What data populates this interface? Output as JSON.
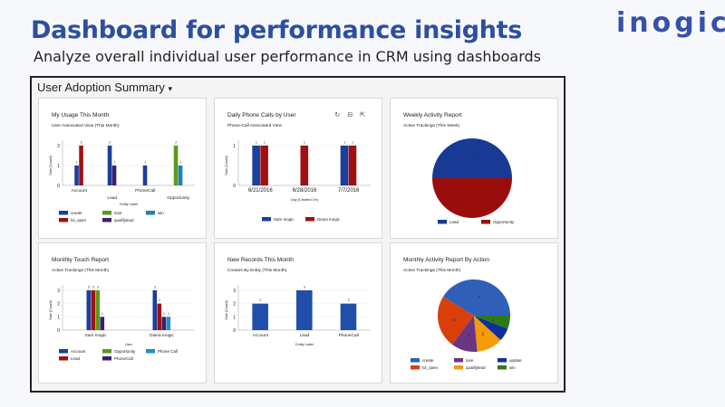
{
  "header": {
    "title": "Dashboard for performance insights",
    "subtitle": "Analyze overall individual user performance in CRM using dashboards",
    "logo": "inogic"
  },
  "dashboard": {
    "name": "User Adoption Summary",
    "chevron": "▾"
  },
  "chart_data": [
    {
      "type": "bar",
      "title": "My Usage This Month",
      "subtitle": "User Associated View (This Month)",
      "xlabel": "Entity Label",
      "ylabel": "Sum (Count)",
      "ylim": [
        0,
        2
      ],
      "yticks": [
        0,
        1,
        2
      ],
      "categories": [
        "Account",
        "Lead",
        "PhoneCall",
        "Opportunity"
      ],
      "series": [
        {
          "name": "create",
          "color": "#1a3f9c",
          "values": [
            1,
            2,
            1,
            null
          ]
        },
        {
          "name": "lol_open",
          "color": "#a01010",
          "values": [
            2,
            null,
            null,
            null
          ]
        },
        {
          "name": "qualifylead",
          "color": "#3b1f6e",
          "values": [
            null,
            1,
            null,
            null
          ]
        },
        {
          "name": "lose",
          "color": "#5a9a1a",
          "values": [
            null,
            null,
            null,
            2
          ]
        },
        {
          "name": "win",
          "color": "#1f7fb8",
          "values": [
            null,
            null,
            null,
            1
          ]
        }
      ],
      "legend": [
        "create",
        "lose",
        "win",
        "lol_open",
        "qualifylead"
      ]
    },
    {
      "type": "bar",
      "title": "Daily Phone Calls by User",
      "subtitle": "Phone-Call Associated View",
      "xlabel": "Day (Created On)",
      "ylabel": "Sum (Count)",
      "ylim": [
        0,
        1
      ],
      "yticks": [
        0,
        1
      ],
      "categories": [
        "6/21/2016",
        "6/28/2016",
        "7/7/2016"
      ],
      "series": [
        {
          "name": "Sam Inogic",
          "color": "#1a3f9c",
          "values": [
            1,
            null,
            1
          ]
        },
        {
          "name": "Diana Inogic",
          "color": "#a01010",
          "values": [
            1,
            1,
            1
          ]
        }
      ],
      "legend": [
        "Sam Inogic",
        "Diana Inogic"
      ],
      "icons": [
        "refresh-icon",
        "expand-icon",
        "popout-icon"
      ]
    },
    {
      "type": "pie",
      "title": "Weekly Activity Report",
      "subtitle": "Active Trackings (This Week)",
      "slices": [
        {
          "name": "Lead",
          "value": 1,
          "color": "#183a94"
        },
        {
          "name": "Opportunity",
          "value": 1,
          "color": "#9a0d0d"
        }
      ],
      "start": "left",
      "legend": [
        "Lead",
        "Opportunity"
      ]
    },
    {
      "type": "bar",
      "title": "Monthly Touch Report",
      "subtitle": "Active Trackings (This Month)",
      "xlabel": "User",
      "ylabel": "Sum (Count)",
      "ylim": [
        0,
        3
      ],
      "yticks": [
        0,
        1,
        2,
        3
      ],
      "categories": [
        "Sam Inogic",
        "Diana Inogic"
      ],
      "series": [
        {
          "name": "Account",
          "color": "#1a3f9c",
          "values": [
            3,
            3
          ]
        },
        {
          "name": "Lead",
          "color": "#a01010",
          "values": [
            3,
            2
          ]
        },
        {
          "name": "Opportunity",
          "color": "#5a9a1a",
          "values": [
            3,
            null
          ]
        },
        {
          "name": "PhoneCall",
          "color": "#3b1f6e",
          "values": [
            1,
            1
          ]
        },
        {
          "name": "Phone Call",
          "color": "#1f8fc8",
          "values": [
            null,
            1
          ]
        }
      ],
      "legend": [
        "Account",
        "Opportunity",
        "Phone Call",
        "Lead",
        "PhoneCall"
      ]
    },
    {
      "type": "bar",
      "title": "New Records This Month",
      "subtitle": "Creates By Entity (This Month)",
      "xlabel": "Entity Label",
      "ylabel": "Sum (Count)",
      "ylim": [
        0,
        3
      ],
      "yticks": [
        0,
        1,
        2,
        3
      ],
      "categories": [
        "Account",
        "Lead",
        "PhoneCall"
      ],
      "series": [
        {
          "name": "Count",
          "color": "#1f4fa8",
          "values": [
            2,
            3,
            2
          ]
        }
      ],
      "legend": []
    },
    {
      "type": "pie",
      "title": "Monthly Activity Report By Action",
      "subtitle": "Active Trackings (This Month)",
      "start": "right",
      "slices": [
        {
          "name": "create",
          "value": 7,
          "color": "#2f5fb8"
        },
        {
          "name": "lol_open",
          "value": 4,
          "color": "#d93f0b"
        },
        {
          "name": "lose",
          "value": 2,
          "color": "#6b3585"
        },
        {
          "name": "qualifylead",
          "value": 2,
          "color": "#f59a0a"
        },
        {
          "name": "update",
          "value": 1,
          "color": "#0d2e9c"
        },
        {
          "name": "win",
          "value": 1,
          "color": "#2e7a1a"
        }
      ],
      "legend": [
        "create",
        "lose",
        "update",
        "lol_open",
        "qualifylead",
        "win"
      ]
    }
  ]
}
